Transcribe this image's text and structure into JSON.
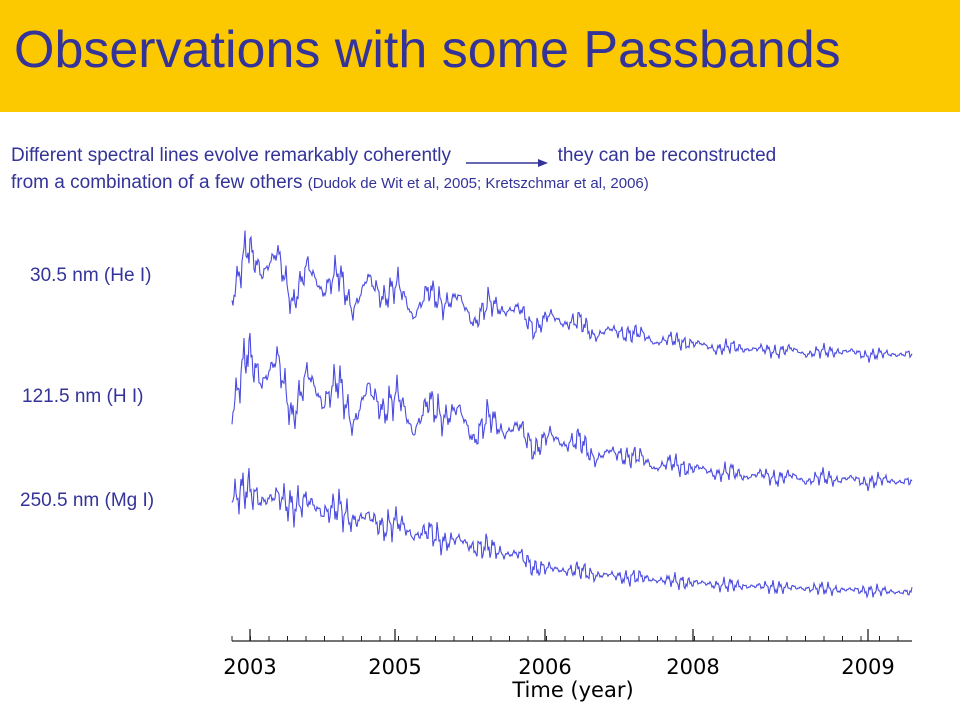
{
  "slide": {
    "title": "Observations with some Passbands",
    "desc_line1_a": "Different spectral lines evolve remarkably coherently",
    "desc_line1_b": "they can be reconstructed",
    "desc_line2_a": "from a combination of a few others",
    "desc_citation": "(Dudok de Wit et al, 2005; Kretszchmar et al, 2006)"
  },
  "colors": {
    "title_bar": "#fcc800",
    "title_text": "#333399",
    "series_line": "#4a4ae0"
  },
  "chart_data": {
    "type": "line",
    "title": "",
    "xlabel": "Time  (year)",
    "ylabel": "",
    "x_ticks": [
      "2003",
      "2005",
      "2006",
      "2008",
      "2009"
    ],
    "grid": false,
    "series": [
      {
        "name": "30.5 nm (He I)",
        "values": [
          0.5,
          0.95,
          0.7,
          0.9,
          0.45,
          0.8,
          0.55,
          0.75,
          0.4,
          0.7,
          0.5,
          0.65,
          0.35,
          0.6,
          0.45,
          0.55,
          0.3,
          0.5,
          0.4,
          0.45,
          0.25,
          0.4,
          0.3,
          0.35,
          0.2,
          0.28,
          0.22,
          0.25,
          0.15,
          0.2,
          0.15,
          0.16,
          0.1,
          0.14,
          0.1,
          0.12,
          0.08,
          0.12,
          0.06,
          0.1,
          0.08,
          0.1,
          0.05,
          0.08,
          0.06,
          0.08
        ]
      },
      {
        "name": "121.5 nm (H I)",
        "values": [
          0.55,
          1.0,
          0.75,
          0.95,
          0.5,
          0.85,
          0.6,
          0.8,
          0.45,
          0.75,
          0.55,
          0.7,
          0.4,
          0.65,
          0.5,
          0.6,
          0.35,
          0.55,
          0.4,
          0.48,
          0.28,
          0.42,
          0.32,
          0.38,
          0.22,
          0.3,
          0.24,
          0.26,
          0.16,
          0.22,
          0.16,
          0.18,
          0.12,
          0.16,
          0.1,
          0.14,
          0.09,
          0.13,
          0.07,
          0.12,
          0.08,
          0.11,
          0.06,
          0.1,
          0.07,
          0.09
        ]
      },
      {
        "name": "250.5 nm (Mg I)",
        "values": [
          0.88,
          0.98,
          0.85,
          0.92,
          0.8,
          0.88,
          0.75,
          0.82,
          0.68,
          0.75,
          0.62,
          0.7,
          0.55,
          0.62,
          0.5,
          0.55,
          0.45,
          0.48,
          0.4,
          0.42,
          0.28,
          0.3,
          0.26,
          0.28,
          0.22,
          0.24,
          0.2,
          0.22,
          0.18,
          0.19,
          0.16,
          0.17,
          0.14,
          0.15,
          0.13,
          0.14,
          0.12,
          0.13,
          0.11,
          0.12,
          0.1,
          0.11,
          0.09,
          0.1,
          0.08,
          0.09
        ]
      }
    ]
  }
}
